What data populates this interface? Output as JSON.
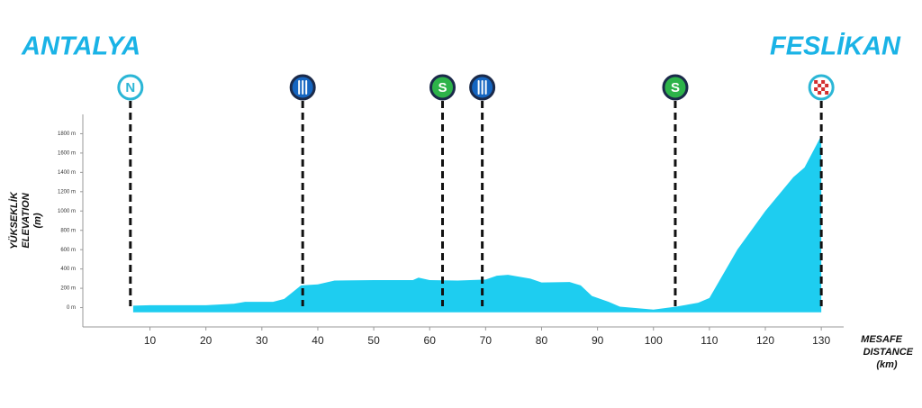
{
  "chart_data": {
    "type": "area",
    "start": "ANTALYA",
    "finish": "FESLİKAN",
    "ylabel": [
      "YÜKSEKLİK",
      "ELEVATION",
      "(m)"
    ],
    "xlabel": [
      "MESAFE",
      "DISTANCE",
      "(km)"
    ],
    "color": "#1ecdf0",
    "xlim": [
      -2,
      134
    ],
    "ylim": [
      -200,
      2000
    ],
    "xticks": [
      10,
      20,
      30,
      40,
      50,
      60,
      70,
      80,
      90,
      100,
      110,
      120,
      130
    ],
    "yticks": [
      {
        "value": 0,
        "label": "0 m"
      },
      {
        "value": 200,
        "label": "200 m"
      },
      {
        "value": 400,
        "label": "400 m"
      },
      {
        "value": 600,
        "label": "600 m"
      },
      {
        "value": 800,
        "label": "800 m"
      },
      {
        "value": 1000,
        "label": "1000 m"
      },
      {
        "value": 1200,
        "label": "1200 m"
      },
      {
        "value": 1400,
        "label": "1400 m"
      },
      {
        "value": 1600,
        "label": "1600 m"
      },
      {
        "value": 1800,
        "label": "1800 m"
      }
    ],
    "series": [
      {
        "x": [
          7,
          10,
          20,
          25,
          27,
          32,
          34,
          37,
          40,
          43,
          50,
          57,
          58,
          60,
          65,
          70,
          72,
          74,
          78,
          80,
          85,
          87,
          89,
          92,
          94,
          100,
          104,
          108,
          110,
          112,
          115,
          120,
          125,
          127,
          130
        ],
        "values": [
          20,
          25,
          25,
          40,
          60,
          60,
          90,
          230,
          240,
          280,
          285,
          285,
          310,
          285,
          280,
          290,
          330,
          340,
          300,
          260,
          265,
          230,
          120,
          60,
          10,
          -20,
          10,
          50,
          100,
          300,
          600,
          1000,
          1350,
          1450,
          1780
        ]
      }
    ],
    "markers": [
      {
        "x": 6.5,
        "label": "N",
        "color": "#ffffff"
      },
      {
        "x": 37.3,
        "icon": "feed",
        "color": "#1565c0"
      },
      {
        "x": 62.3,
        "label": "S",
        "color": "#2db34a"
      },
      {
        "x": 69.4,
        "icon": "feed",
        "color": "#1565c0"
      },
      {
        "x": 103.9,
        "label": "S",
        "color": "#2db34a"
      },
      {
        "x": 130,
        "icon": "finish",
        "color": "#ffffff"
      }
    ]
  }
}
